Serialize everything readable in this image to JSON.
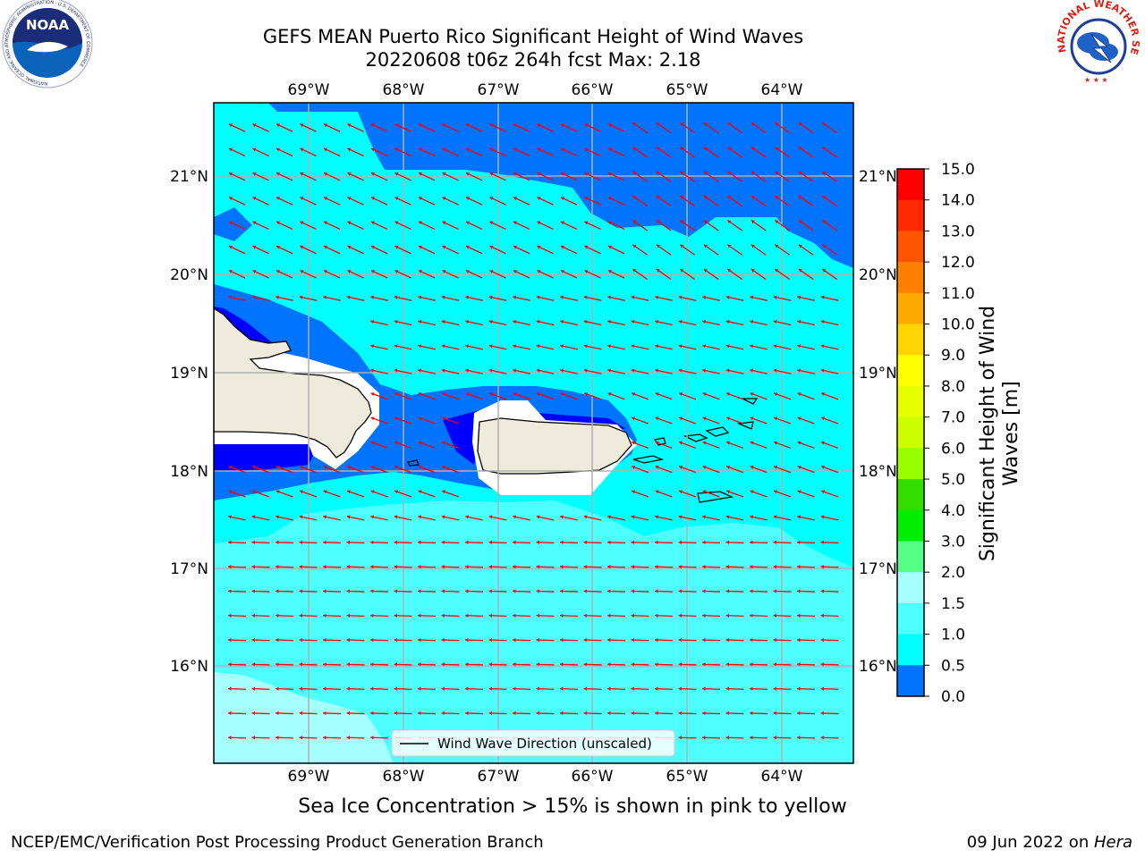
{
  "header": {
    "title_line1": "GEFS MEAN Puerto Rico Significant Height of Wind Waves",
    "title_line2": "20220608 t06z 264h fcst   Max: 2.18"
  },
  "logos": {
    "left": {
      "text": "NOAA",
      "ring_text": "NATIONAL OCEANIC AND ATMOSPHERIC ADMINISTRATION · U.S. DEPARTMENT OF COMMERCE"
    },
    "right": {
      "ring_text": "NATIONAL WEATHER SERVICE"
    }
  },
  "map": {
    "lon_labels": [
      "69°W",
      "68°W",
      "67°W",
      "66°W",
      "65°W",
      "64°W"
    ],
    "lat_labels": [
      "21°N",
      "20°N",
      "19°N",
      "18°N",
      "17°N",
      "16°N"
    ],
    "legend_label": "Wind Wave Direction (unscaled)",
    "colors": {
      "band_0_0_5": "#0000ff",
      "band_0_5_1_0": "#0073ff",
      "band_1_0_1_5": "#00ffff",
      "band_1_5_2_0": "#4dffff",
      "band_2_0_3_0": "#a6ffff",
      "land": "#efebdc",
      "arrow": "#ff0000",
      "grid": "#b0b0b0"
    }
  },
  "colorbar": {
    "label": "Significant Height of Wind Waves [m]",
    "ticks": [
      "15.0",
      "14.0",
      "13.0",
      "12.0",
      "11.0",
      "10.0",
      "9.0",
      "8.0",
      "7.0",
      "6.0",
      "5.0",
      "4.0",
      "3.0",
      "2.0",
      "1.5",
      "1.0",
      "0.5",
      "0.0"
    ],
    "colors": [
      "#ff0000",
      "#ff2a00",
      "#ff5500",
      "#ff8000",
      "#ffaa00",
      "#ffd400",
      "#ffff00",
      "#e6ff00",
      "#ccff00",
      "#99ff00",
      "#33dd00",
      "#00ee00",
      "#55ff88",
      "#a6ffff",
      "#4dffff",
      "#00ffff",
      "#0073ff",
      "#0000ff"
    ]
  },
  "caption": "Sea Ice Concentration > 15% is shown in pink to yellow",
  "footer": {
    "left": "NCEP/EMC/Verification Post Processing Product Generation Branch",
    "right_prefix": "09 Jun 2022 on ",
    "right_host": "Hera"
  }
}
